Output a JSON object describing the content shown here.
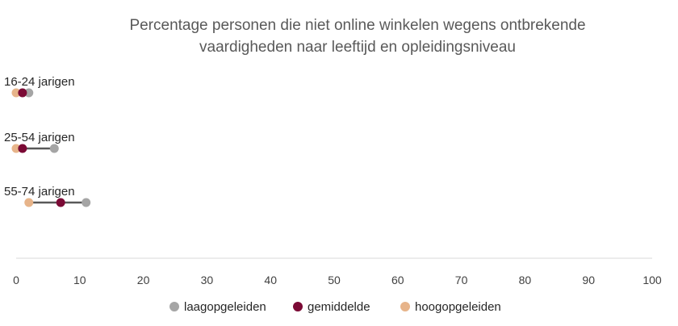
{
  "chart_data": {
    "type": "scatter",
    "subtype": "dumbbell",
    "title": [
      "Percentage personen die niet online winkelen wegens ontbrekende",
      "vaardigheden naar leeftijd en opleidingsniveau"
    ],
    "categories": [
      "16-24 jarigen",
      "25-54 jarigen",
      "55-74 jarigen"
    ],
    "series": [
      {
        "name": "laagopgeleiden",
        "color": "#A5A5A5",
        "values": [
          2,
          6,
          11
        ]
      },
      {
        "name": "gemiddelde",
        "color": "#7B0A35",
        "values": [
          1,
          1,
          7
        ]
      },
      {
        "name": "hoogopgeleiden",
        "color": "#E7B48A",
        "values": [
          0,
          0,
          2
        ]
      }
    ],
    "connector_color": "#595959",
    "xlim": [
      0,
      100
    ],
    "xticks": [
      0,
      10,
      20,
      30,
      40,
      50,
      60,
      70,
      80,
      90,
      100
    ],
    "grid": false,
    "legend": "bottom"
  }
}
